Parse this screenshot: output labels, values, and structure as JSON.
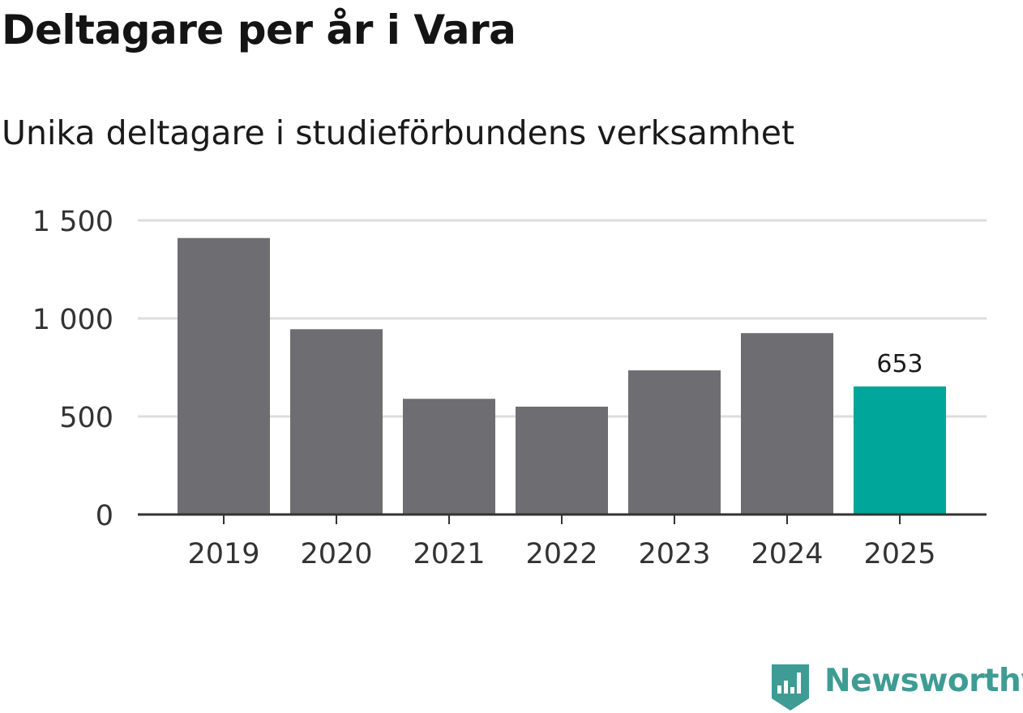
{
  "header": {
    "title": "Deltagare per år i Vara",
    "subtitle": "Unika deltagare i studieförbundens verksamhet"
  },
  "brand": {
    "name": "Newsworthy",
    "icon": "newsworthy-logo-icon",
    "color": "#3e9c94"
  },
  "colors": {
    "bar": "#6e6d72",
    "highlight": "#00a69a",
    "grid": "#dddddd",
    "axis": "#333333",
    "tick_text": "#333333"
  },
  "chart_data": {
    "type": "bar",
    "title": "Deltagare per år i Vara",
    "subtitle": "Unika deltagare i studieförbundens verksamhet",
    "categories": [
      "2019",
      "2020",
      "2021",
      "2022",
      "2023",
      "2024",
      "2025"
    ],
    "values": [
      1410,
      945,
      590,
      550,
      735,
      925,
      653
    ],
    "highlight_index": 6,
    "data_labels": [
      {
        "index": 6,
        "text": "653"
      }
    ],
    "ylim": [
      0,
      1500
    ],
    "yticks": [
      0,
      500,
      1000,
      1500
    ],
    "ytick_labels": [
      "0",
      "500",
      "1 000",
      "1 500"
    ],
    "xlabel": "",
    "ylabel": "",
    "grid": true,
    "legend": "none"
  }
}
